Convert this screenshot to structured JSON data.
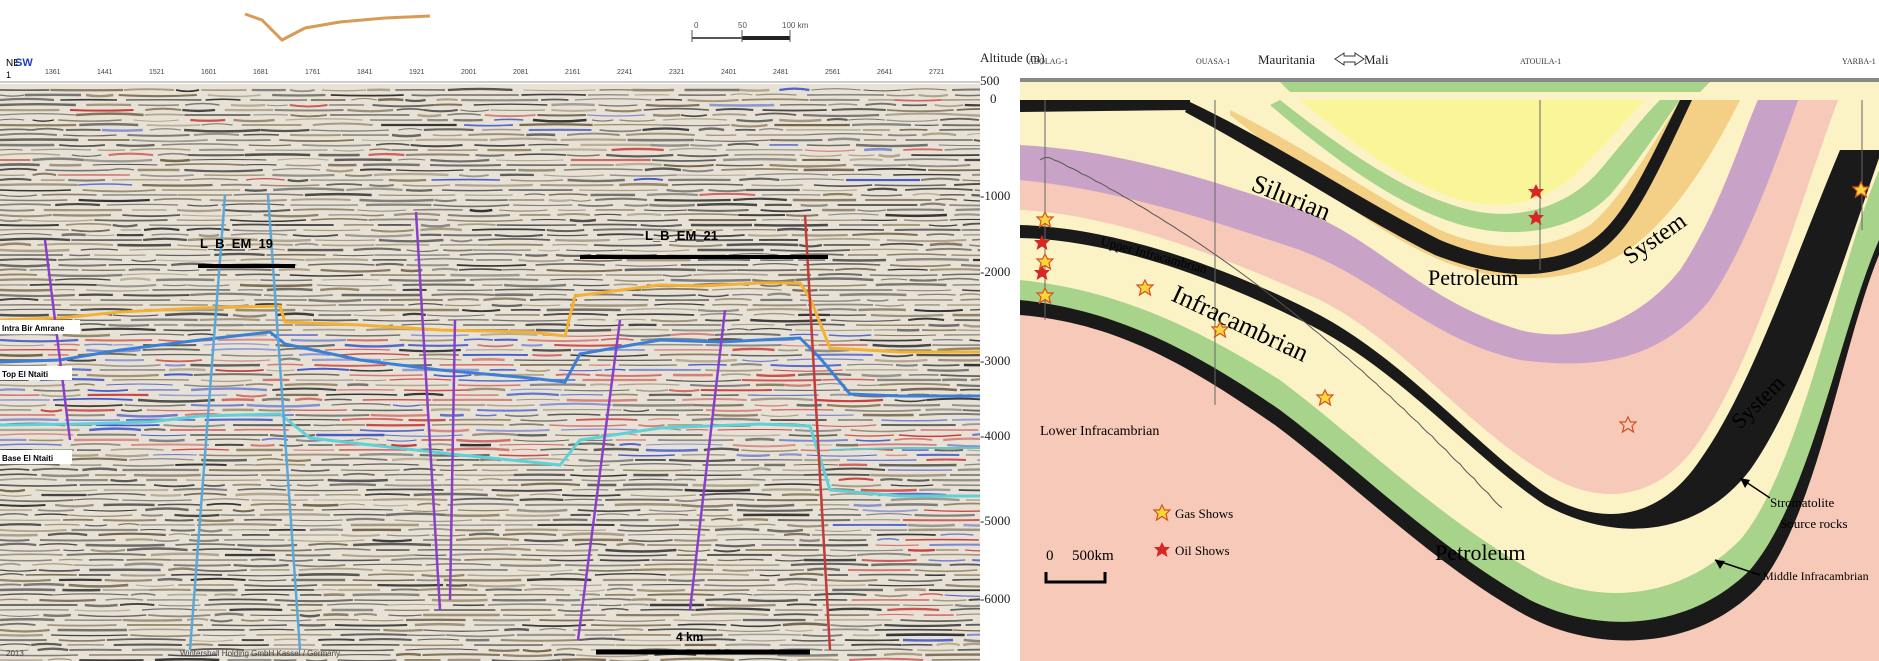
{
  "seismic": {
    "header": {
      "left_tag": "SW",
      "row_labels": [
        "NE",
        "1"
      ]
    },
    "shot_points": [
      "1361",
      "1441",
      "1521",
      "1601",
      "1681",
      "1761",
      "1841",
      "1921",
      "2001",
      "2081",
      "2161",
      "2241",
      "2321",
      "2401",
      "2481",
      "2561",
      "2641",
      "2721"
    ],
    "targets": [
      {
        "id": "L_B_EM_19",
        "label": "L_B_EM_19"
      },
      {
        "id": "L_B_EM_21",
        "label": "L_B_EM_21"
      }
    ],
    "horizons": [
      {
        "label": "Intra Bir Amrane",
        "color": "#f2b134"
      },
      {
        "label": "Top El Ntaiti",
        "color": "#3b7fd6"
      },
      {
        "label": "Base El Ntaiti",
        "color": "#5fd0d8"
      }
    ],
    "scale_bar": {
      "label": "4 km"
    },
    "map_scale": {
      "labels": [
        "0",
        "50",
        "100 km"
      ]
    },
    "footer": {
      "copyright": "Wintershall Holding GmbH Kassel / Germany",
      "date": "2013"
    }
  },
  "geo": {
    "axis_title": "Altitude (m)",
    "y_ticks": [
      "500",
      "0",
      "-1000",
      "-2000",
      "-3000",
      "-4000",
      "-5000",
      "-6000"
    ],
    "wells": [
      "ABOLAG-1",
      "OUASA-1",
      "ATOUILA-1",
      "YARBA-1"
    ],
    "border": {
      "left": "Mauritania",
      "right": "Mali"
    },
    "formations": {
      "silurian": "Silurian",
      "petroleum_upper": "Petroleum",
      "system_upper": "System",
      "upper_infracambrian": "Upper Infracambrian",
      "infracambrian": "Infracambrian",
      "system_lower": "System",
      "petroleum_lower": "Petroleum",
      "lower_infracambrian": "Lower Infracambrian"
    },
    "legend": {
      "gas": "Gas Shows",
      "oil": "Oil Shows"
    },
    "scale": {
      "zero": "0",
      "label": "500km"
    },
    "annotations": {
      "stromatolite_line1": "Stromatolite",
      "stromatolite_line2": "Source rocks",
      "middle": "Middle Infracambrian"
    },
    "colors": {
      "basement": "#f7c9b8",
      "green": "#a8d38a",
      "purple": "#c9a3c7",
      "cream": "#fbf3c6",
      "yellow": "#fbf59a",
      "tan": "#f4cf86",
      "black": "#1a1a1a",
      "header_green": "#1c9e2a"
    }
  }
}
